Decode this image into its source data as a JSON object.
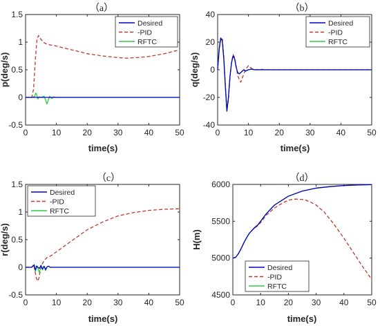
{
  "chart_data": [
    {
      "type": "line",
      "title": "（a）",
      "xlabel": "time(s)",
      "ylabel": "p(deg/s)",
      "xlim": [
        0,
        50
      ],
      "ylim": [
        -0.5,
        1.5
      ],
      "xticks": [
        "0",
        "10",
        "20",
        "30",
        "40",
        "50"
      ],
      "yticks": [
        "-0.5",
        "0",
        "0.5",
        "1",
        "1.5"
      ],
      "legend": [
        "Desired",
        "-PID",
        "RFTC"
      ],
      "legend_position": "top-right",
      "series": [
        {
          "name": "Desired",
          "color": "#0000c8",
          "dash": "solid",
          "x": [
            0,
            50
          ],
          "y": [
            0,
            0
          ]
        },
        {
          "name": "-PID",
          "color": "#c0392b",
          "dash": "dashed",
          "x": [
            0,
            2,
            2.6,
            3.2,
            3.7,
            4.2,
            5,
            6,
            7,
            8,
            10,
            12,
            15,
            18,
            20,
            25,
            30,
            33,
            36,
            40,
            45,
            50
          ],
          "y": [
            0,
            0,
            0.15,
            0.7,
            1.05,
            1.12,
            1.05,
            0.99,
            0.96,
            0.95,
            0.93,
            0.9,
            0.86,
            0.82,
            0.79,
            0.75,
            0.72,
            0.71,
            0.72,
            0.74,
            0.79,
            0.86
          ]
        },
        {
          "name": "RFTC",
          "color": "#2ecc40",
          "dash": "solid",
          "x": [
            0,
            2,
            3,
            3.3,
            3.6,
            4,
            4.4,
            5,
            6,
            6.5,
            6.9,
            7.3,
            7.8,
            8.5,
            9.2,
            10,
            50
          ],
          "y": [
            0,
            0,
            0.02,
            0.08,
            0.05,
            -0.03,
            0.01,
            0,
            0.02,
            -0.05,
            -0.12,
            -0.06,
            0.02,
            -0.02,
            0.01,
            0,
            0
          ]
        }
      ]
    },
    {
      "type": "line",
      "title": "（b）",
      "xlabel": "time(s)",
      "ylabel": "q(deg/s)",
      "xlim": [
        0,
        50
      ],
      "ylim": [
        -40,
        40
      ],
      "xticks": [
        "0",
        "10",
        "20",
        "30",
        "40",
        "50"
      ],
      "yticks": [
        "-40",
        "-20",
        "0",
        "20",
        "40"
      ],
      "legend": [
        "Desired",
        "-PID",
        "RFTC"
      ],
      "legend_position": "top-right",
      "series": [
        {
          "name": "Desired",
          "color": "#0000c8",
          "dash": "solid",
          "x": [
            0,
            0.5,
            1,
            1.5,
            2,
            2.5,
            3,
            3.5,
            4,
            4.5,
            5,
            5.5,
            6,
            6.5,
            7,
            7.5,
            8,
            8.5,
            9,
            10,
            11,
            12,
            14,
            50
          ],
          "y": [
            0,
            15,
            23,
            21,
            8,
            -12,
            -30,
            -20,
            -5,
            5,
            10,
            8,
            2,
            -2,
            -3,
            -2,
            -1,
            0,
            -1,
            0,
            0.5,
            0,
            0,
            0
          ]
        },
        {
          "name": "-PID",
          "color": "#c0392b",
          "dash": "dashed",
          "x": [
            0,
            0.5,
            1,
            1.5,
            2,
            2.5,
            3,
            3.5,
            4,
            4.5,
            5,
            5.5,
            6,
            6.5,
            7,
            7.5,
            8,
            9,
            10,
            11,
            12,
            14,
            16,
            50
          ],
          "y": [
            0,
            14,
            22,
            23,
            10,
            -10,
            -29,
            -22,
            -6,
            5,
            11,
            9,
            3,
            -4,
            -7,
            -9,
            -6,
            0,
            3,
            1,
            0,
            0.3,
            0,
            0
          ]
        },
        {
          "name": "RFTC",
          "color": "#2ecc40",
          "dash": "solid",
          "x": [
            0,
            0.5,
            1,
            1.5,
            2,
            2.5,
            3,
            3.5,
            4,
            4.5,
            5,
            5.5,
            6,
            6.5,
            7,
            7.5,
            8,
            8.5,
            9,
            10,
            11,
            12,
            14,
            50
          ],
          "y": [
            0,
            15,
            23,
            21,
            8,
            -12,
            -30,
            -20,
            -5,
            5,
            10,
            8,
            2,
            -2,
            -3,
            -2,
            -1,
            0,
            -1,
            0,
            0.5,
            0,
            0,
            0
          ]
        }
      ]
    },
    {
      "type": "line",
      "title": "（c）",
      "xlabel": "time(s)",
      "ylabel": "r(deg/s)",
      "xlim": [
        0,
        50
      ],
      "ylim": [
        -0.5,
        1.5
      ],
      "xticks": [
        "0",
        "10",
        "20",
        "30",
        "40",
        "50"
      ],
      "yticks": [
        "-0.5",
        "0",
        "0.5",
        "1",
        "1.5"
      ],
      "legend": [
        "Desired",
        "-PID",
        "RFTC"
      ],
      "legend_position": "top-left",
      "series": [
        {
          "name": "Desired",
          "color": "#0000c8",
          "dash": "solid",
          "x": [
            0,
            2,
            2.8,
            3.2,
            3.6,
            4,
            4.5,
            5,
            5.5,
            6,
            6.5,
            7,
            7.5,
            8,
            50
          ],
          "y": [
            0,
            0,
            0.04,
            -0.05,
            0.02,
            0,
            -0.02,
            0.03,
            -0.03,
            0.02,
            -0.04,
            0.01,
            0.02,
            0,
            0
          ]
        },
        {
          "name": "-PID",
          "color": "#c0392b",
          "dash": "dashed",
          "x": [
            0,
            2,
            2.6,
            3,
            3.5,
            4,
            4.4,
            4.8,
            5.3,
            6,
            7,
            8,
            10,
            15,
            20,
            25,
            30,
            35,
            40,
            45,
            50
          ],
          "y": [
            0,
            0,
            0.05,
            -0.05,
            -0.2,
            -0.25,
            -0.18,
            -0.05,
            0.05,
            0.12,
            0.18,
            0.2,
            0.28,
            0.48,
            0.68,
            0.82,
            0.93,
            0.99,
            1.03,
            1.05,
            1.06
          ]
        },
        {
          "name": "RFTC",
          "color": "#2ecc40",
          "dash": "solid",
          "x": [
            0,
            2,
            2.8,
            3.2,
            3.6,
            4,
            4.5,
            5,
            5.5,
            6,
            6.5,
            7,
            7.5,
            8,
            50
          ],
          "y": [
            0,
            0,
            0.05,
            -0.08,
            0.03,
            -0.02,
            -0.1,
            0.04,
            -0.05,
            0.02,
            -0.06,
            0.01,
            0.02,
            0,
            0
          ]
        }
      ]
    },
    {
      "type": "line",
      "title": "（d）",
      "xlabel": "time(s)",
      "ylabel": "H(m)",
      "xlim": [
        0,
        50
      ],
      "ylim": [
        4500,
        6000
      ],
      "xticks": [
        "0",
        "10",
        "20",
        "30",
        "40",
        "50"
      ],
      "yticks": [
        "4500",
        "5000",
        "5500",
        "6000"
      ],
      "legend": [
        "Desired",
        "-PID",
        "RFTC"
      ],
      "legend_position": "bottom-right",
      "series": [
        {
          "name": "Desired",
          "color": "#0000c8",
          "dash": "solid",
          "x": [
            0,
            1,
            2,
            3,
            4,
            5,
            6,
            7,
            8,
            9,
            10,
            12,
            15,
            20,
            25,
            30,
            35,
            40,
            45,
            50
          ],
          "y": [
            5000,
            5010,
            5060,
            5130,
            5210,
            5280,
            5340,
            5380,
            5420,
            5450,
            5500,
            5600,
            5720,
            5840,
            5910,
            5950,
            5970,
            5985,
            5992,
            5997
          ]
        },
        {
          "name": "-PID",
          "color": "#c0392b",
          "dash": "dashed",
          "x": [
            0,
            1,
            2,
            3,
            4,
            5,
            6,
            7,
            8,
            9,
            10,
            12,
            15,
            18,
            20,
            22,
            24,
            26,
            28,
            30,
            33,
            36,
            40,
            44,
            47,
            50
          ],
          "y": [
            5000,
            5010,
            5060,
            5130,
            5210,
            5280,
            5340,
            5380,
            5410,
            5440,
            5480,
            5580,
            5680,
            5750,
            5785,
            5800,
            5800,
            5790,
            5760,
            5720,
            5620,
            5480,
            5270,
            5040,
            4870,
            4710
          ]
        },
        {
          "name": "RFTC",
          "color": "#2ecc40",
          "dash": "solid",
          "x": [
            0,
            1,
            2,
            3,
            4,
            5,
            6,
            7,
            8,
            9,
            10,
            12,
            15,
            20,
            25,
            30,
            35,
            40,
            45,
            50
          ],
          "y": [
            5000,
            5010,
            5060,
            5130,
            5210,
            5280,
            5340,
            5380,
            5420,
            5450,
            5500,
            5600,
            5720,
            5840,
            5910,
            5950,
            5970,
            5985,
            5992,
            5997
          ]
        }
      ]
    }
  ]
}
